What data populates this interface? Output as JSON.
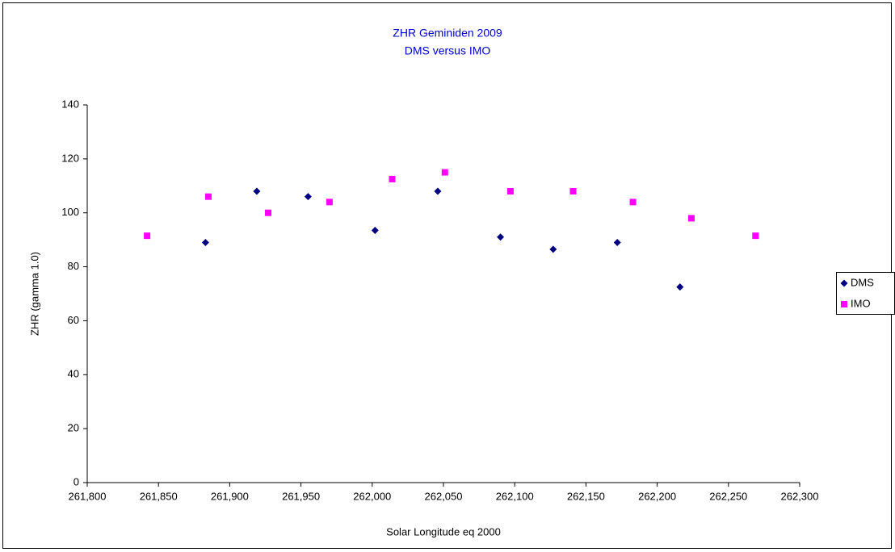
{
  "chart_data": {
    "type": "scatter",
    "title": "ZHR Geminiden 2009",
    "subtitle": "DMS versus IMO",
    "x_label": "Solar Longitude eq 2000",
    "y_label": "ZHR (gamma 1.0)",
    "xlim": [
      261800,
      262300
    ],
    "xticks": [
      {
        "value": 261800,
        "label": "261,800"
      },
      {
        "value": 261850,
        "label": "261,850"
      },
      {
        "value": 261900,
        "label": "261,900"
      },
      {
        "value": 261950,
        "label": "261,950"
      },
      {
        "value": 262000,
        "label": "262,000"
      },
      {
        "value": 262050,
        "label": "262,050"
      },
      {
        "value": 262100,
        "label": "262,100"
      },
      {
        "value": 262150,
        "label": "262,150"
      },
      {
        "value": 262200,
        "label": "262,200"
      },
      {
        "value": 262250,
        "label": "262,250"
      },
      {
        "value": 262300,
        "label": "262,300"
      }
    ],
    "ylim": [
      0,
      140
    ],
    "yticks": [
      0,
      20,
      40,
      60,
      80,
      100,
      120,
      140
    ],
    "grid": false,
    "legend": "right",
    "series": [
      {
        "name": "DMS",
        "color": "#000080",
        "marker": "diamond",
        "x": [
          261883,
          261919,
          261955,
          262002,
          262046,
          262090,
          262127,
          262172,
          262216
        ],
        "values": [
          89,
          108,
          106,
          93.5,
          108,
          91,
          86.5,
          89,
          72.5
        ]
      },
      {
        "name": "IMO",
        "color": "#ff00ff",
        "marker": "square",
        "x": [
          261842,
          261885,
          261927,
          261970,
          262014,
          262051,
          262097,
          262141,
          262183,
          262224,
          262269
        ],
        "values": [
          91.5,
          106,
          100,
          104,
          112.5,
          115,
          108,
          108,
          104,
          98,
          91.5
        ]
      }
    ]
  }
}
